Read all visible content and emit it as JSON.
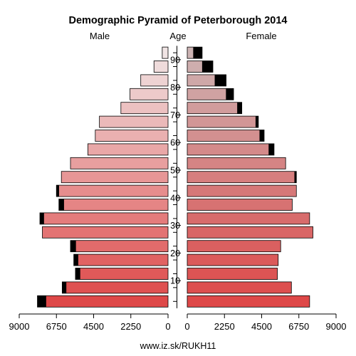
{
  "chart_data": {
    "type": "bar",
    "orientation": "horizontal-mirrored",
    "title": "Demographic Pyramid of Peterborough 2014",
    "left_label": "Male",
    "center_label": "Age",
    "right_label": "Female",
    "source": "www.iz.sk/RUKH11",
    "xlim": [
      0,
      9000
    ],
    "x_ticks_left": [
      "9000",
      "6750",
      "4500",
      "2250",
      "0"
    ],
    "x_ticks_right": [
      "0",
      "2250",
      "4500",
      "6750",
      "9000"
    ],
    "age_ticks": [
      "10",
      "20",
      "30",
      "40",
      "50",
      "60",
      "70",
      "80",
      "90"
    ],
    "age_groups": [
      "0-4",
      "5-9",
      "10-14",
      "15-19",
      "20-24",
      "25-29",
      "30-34",
      "35-39",
      "40-44",
      "45-49",
      "50-54",
      "55-59",
      "60-64",
      "65-69",
      "70-74",
      "75-79",
      "80-84",
      "85-89",
      "90+"
    ],
    "series": [
      {
        "name": "Male",
        "values": [
          7900,
          6400,
          5600,
          5700,
          5900,
          7600,
          7750,
          6600,
          6750,
          6450,
          5900,
          4850,
          4400,
          4150,
          2850,
          2300,
          1650,
          850,
          350
        ],
        "excess": [
          530,
          250,
          290,
          270,
          330,
          0,
          250,
          310,
          160,
          0,
          0,
          0,
          0,
          0,
          0,
          0,
          0,
          0,
          0
        ]
      },
      {
        "name": "Female",
        "values": [
          7400,
          6300,
          5450,
          5500,
          5650,
          7600,
          7400,
          6350,
          6600,
          6600,
          5950,
          5250,
          4650,
          4300,
          3300,
          2800,
          2350,
          1550,
          900
        ],
        "excess": [
          0,
          0,
          0,
          0,
          0,
          0,
          0,
          0,
          0,
          120,
          0,
          330,
          280,
          170,
          280,
          460,
          690,
          650,
          540
        ]
      }
    ],
    "colors": {
      "young": "#de4848",
      "old": "#f0e4e4",
      "female_old": "#cdb4b4",
      "excess": "#000000",
      "stroke": "#000000"
    }
  }
}
